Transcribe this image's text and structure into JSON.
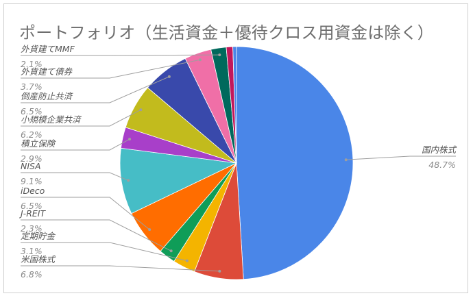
{
  "chart_data": {
    "type": "pie",
    "title": "ポートフォリオ（生活資金＋優待クロス用資金は除く）",
    "categories": [
      "国内株式",
      "米国株式",
      "定期貯金",
      "J-REIT",
      "iDeco",
      "NISA",
      "積立保険",
      "小規模企業共済",
      "倒産防止共済",
      "外貨建て債券",
      "外貨建てMMF"
    ],
    "values": [
      48.7,
      6.8,
      3.1,
      2.3,
      6.5,
      9.1,
      2.9,
      6.2,
      6.5,
      3.7,
      2.1
    ],
    "labels_pct": [
      "48.7%",
      "6.8%",
      "3.1%",
      "2.3%",
      "6.5%",
      "9.1%",
      "2.9%",
      "6.2%",
      "6.5%",
      "3.7%",
      "2.1%"
    ],
    "colors": [
      "#4a86e8",
      "#dd4b39",
      "#f4b400",
      "#0f9d58",
      "#ff6d00",
      "#46bdc6",
      "#a83fc9",
      "#c2bb1d",
      "#3949ab",
      "#f06fa7",
      "#00695c",
      "#c2185b",
      "#4a86e8"
    ],
    "small_slices": [
      {
        "name": "",
        "value": 0.9,
        "color": "#c2185b"
      },
      {
        "name": "",
        "value": 0.5,
        "color": "#4a86e8"
      }
    ],
    "legend": "labels-with-leader-lines"
  }
}
